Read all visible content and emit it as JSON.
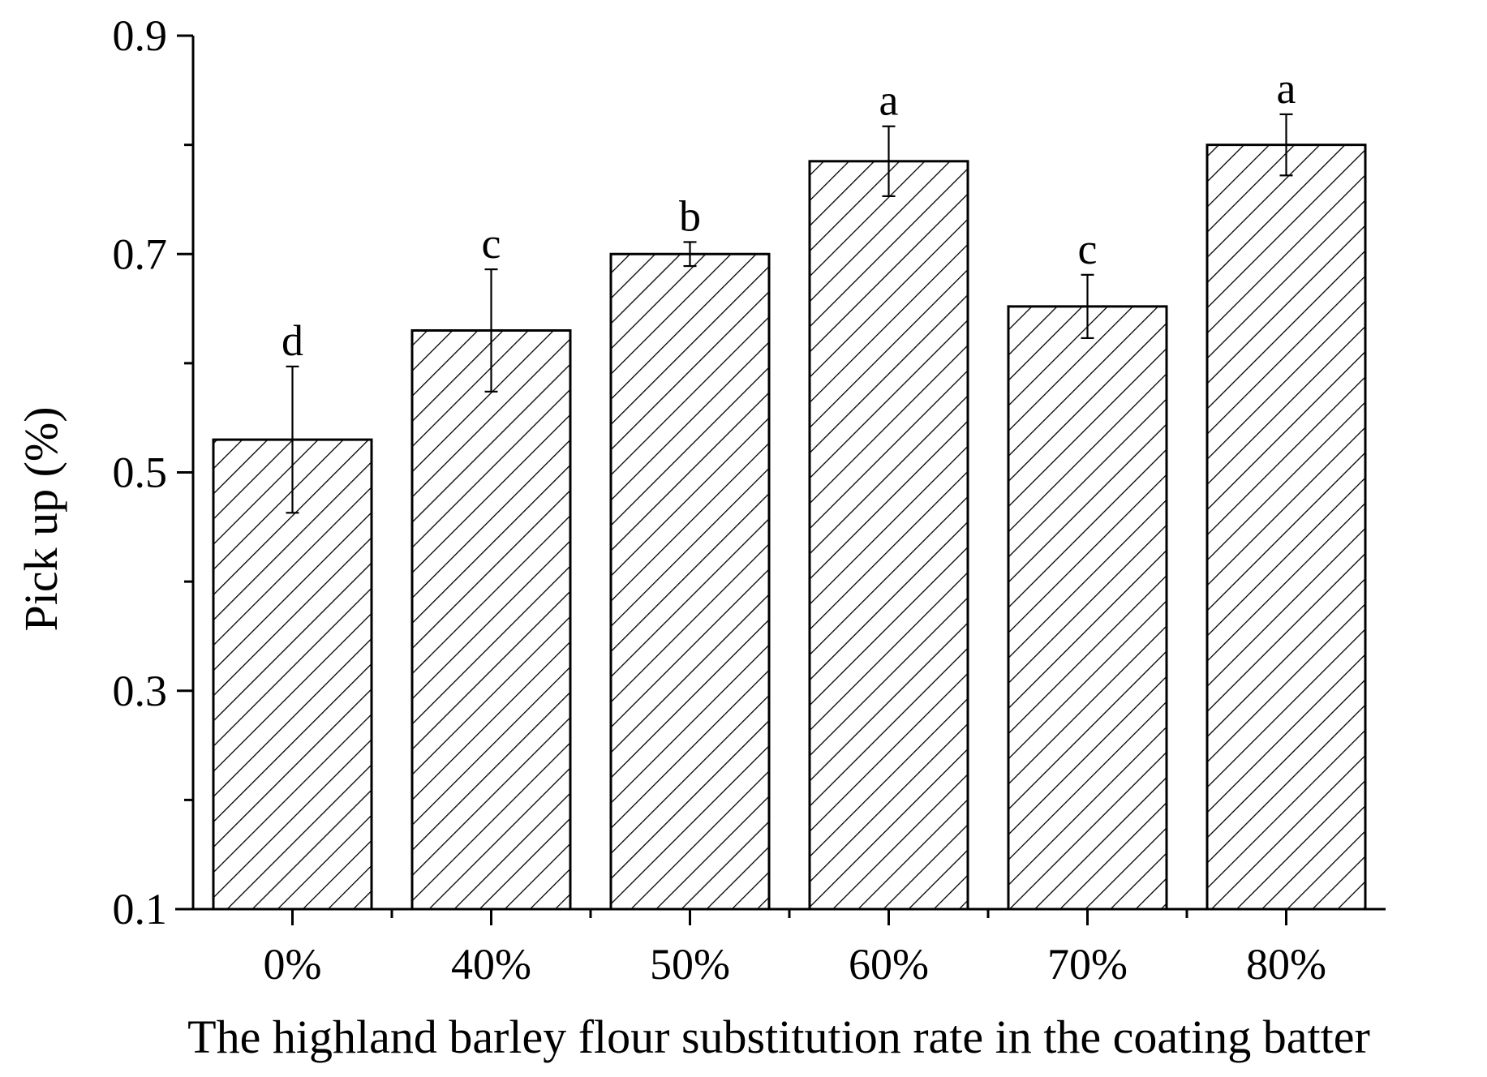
{
  "chart_data": {
    "type": "bar",
    "title": "",
    "xlabel": "The highland barley flour substitution rate in the coating batter",
    "ylabel": "Pick up (%)",
    "categories": [
      "0%",
      "40%",
      "50%",
      "60%",
      "70%",
      "80%"
    ],
    "values": [
      0.53,
      0.63,
      0.7,
      0.785,
      0.652,
      0.8
    ],
    "errors": [
      0.067,
      0.056,
      0.011,
      0.032,
      0.029,
      0.028
    ],
    "labels": [
      "d",
      "c",
      "b",
      "a",
      "c",
      "a"
    ],
    "ylim": [
      0.1,
      0.9
    ],
    "yticks": [
      "0.1",
      "0.3",
      "0.5",
      "0.7",
      "0.9"
    ],
    "ytick_values": [
      0.1,
      0.3,
      0.5,
      0.7,
      0.9
    ],
    "grid": false,
    "legend": "none",
    "bar_style": "diagonal hatch",
    "colors": {
      "bar_fill": "#ffffff",
      "hatch": "#000000",
      "axis": "#000000"
    }
  }
}
